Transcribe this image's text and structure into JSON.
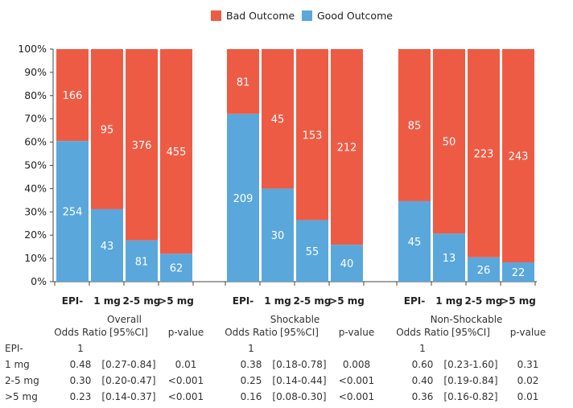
{
  "chart_data": {
    "type": "bar",
    "stacked": true,
    "normalized": true,
    "colors": {
      "bad": "#EE5B44",
      "good": "#5AA7DC"
    },
    "legend": {
      "position": "top-center",
      "entries": [
        "Bad Outcome",
        "Good Outcome"
      ]
    },
    "ylim": [
      0,
      100
    ],
    "yticks": [
      "0%",
      "10%",
      "20%",
      "30%",
      "40%",
      "50%",
      "60%",
      "70%",
      "80%",
      "90%",
      "100%"
    ],
    "categories": [
      "EPI-",
      "1 mg",
      "2-5 mg",
      ">5 mg"
    ],
    "groups": [
      {
        "name": "Overall",
        "good": [
          254,
          43,
          81,
          62
        ],
        "bad": [
          166,
          95,
          376,
          455
        ]
      },
      {
        "name": "Shockable",
        "good": [
          209,
          30,
          55,
          40
        ],
        "bad": [
          81,
          45,
          153,
          212
        ]
      },
      {
        "name": "Non-Shockable",
        "good": [
          45,
          13,
          26,
          22
        ],
        "bad": [
          85,
          50,
          223,
          243
        ]
      }
    ],
    "table": {
      "headers": [
        "Odds Ratio",
        "[95%CI]",
        "p-value"
      ],
      "row_labels": [
        "EPI-",
        "1 mg",
        "2-5 mg",
        ">5 mg"
      ],
      "groups": [
        {
          "rows": [
            [
              "1",
              "",
              ""
            ],
            [
              "0.48",
              "[0.27-0.84]",
              "0.01"
            ],
            [
              "0.30",
              "[0.20-0.47]",
              "<0.001"
            ],
            [
              "0.23",
              "[0.14-0.37]",
              "<0.001"
            ]
          ]
        },
        {
          "rows": [
            [
              "1",
              "",
              ""
            ],
            [
              "0.38",
              "[0.18-0.78]",
              "0.008"
            ],
            [
              "0.25",
              "[0.14-0.44]",
              "<0.001"
            ],
            [
              "0.16",
              "[0.08-0.30]",
              "<0.001"
            ]
          ]
        },
        {
          "rows": [
            [
              "1",
              "",
              ""
            ],
            [
              "0.60",
              "[0.23-1.60]",
              "0.31"
            ],
            [
              "0.40",
              "[0.19-0.84]",
              "0.02"
            ],
            [
              "0.36",
              "[0.16-0.82]",
              "0.01"
            ]
          ]
        }
      ]
    }
  }
}
